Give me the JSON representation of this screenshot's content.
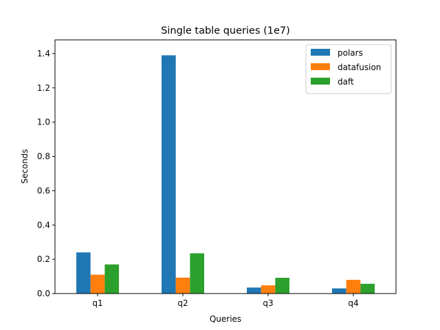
{
  "chart_data": {
    "type": "bar",
    "title": "Single table queries (1e7)",
    "xlabel": "Queries",
    "ylabel": "Seconds",
    "categories": [
      "q1",
      "q2",
      "q3",
      "q4"
    ],
    "ylim": [
      0,
      1.48
    ],
    "yticks": [
      0.0,
      0.2,
      0.4,
      0.6,
      0.8,
      1.0,
      1.2,
      1.4
    ],
    "ytick_labels": [
      "0.0",
      "0.2",
      "0.4",
      "0.6",
      "0.8",
      "1.0",
      "1.2",
      "1.4"
    ],
    "grid": false,
    "legend_position": "top-right",
    "series": [
      {
        "name": "polars",
        "color": "#1f77b4",
        "values": [
          0.24,
          1.39,
          0.035,
          0.03
        ]
      },
      {
        "name": "datafusion",
        "color": "#ff7f0e",
        "values": [
          0.11,
          0.093,
          0.048,
          0.08
        ]
      },
      {
        "name": "daft",
        "color": "#2ca02c",
        "values": [
          0.17,
          0.235,
          0.092,
          0.057
        ]
      }
    ]
  }
}
